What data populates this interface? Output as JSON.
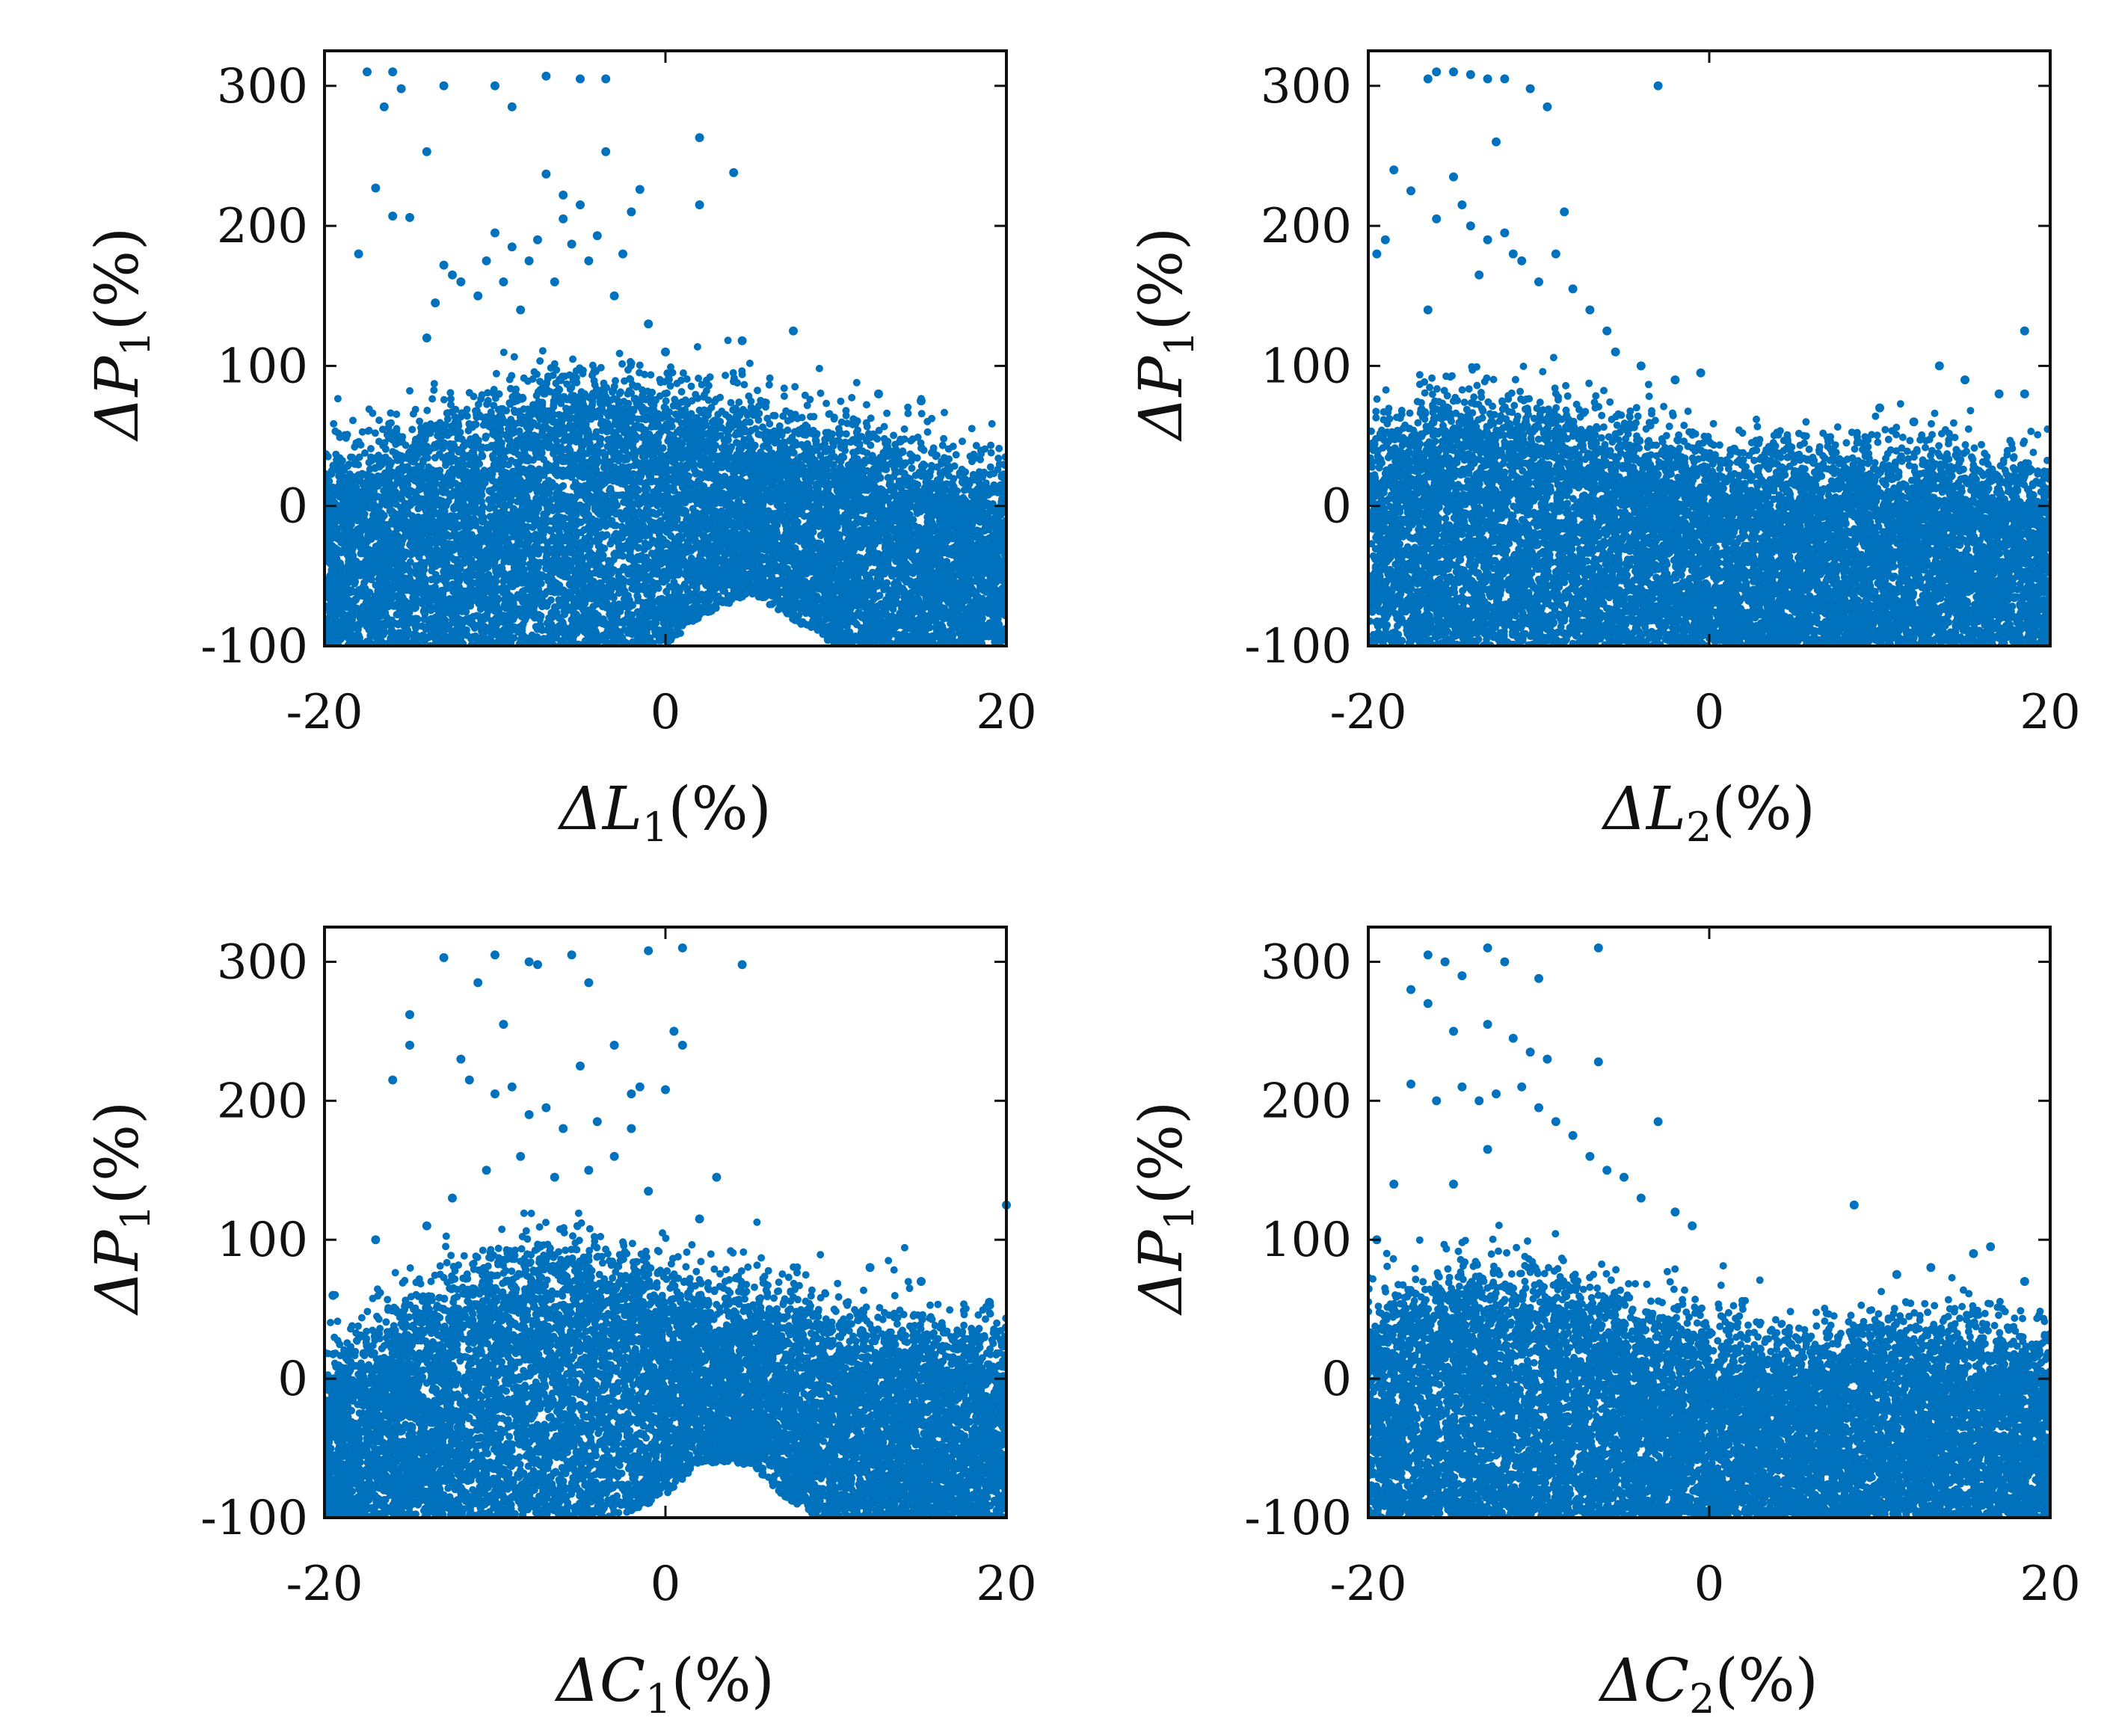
{
  "colors": {
    "points": "#0072BD",
    "axes": "#111111",
    "background": "#ffffff"
  },
  "chart_data": [
    {
      "type": "scatter",
      "id": "L1",
      "xlabel": {
        "symbol": "ΔL",
        "sub": "1",
        "unit": "(%)"
      },
      "ylabel": {
        "symbol": "ΔP",
        "sub": "1",
        "unit": "(%)"
      },
      "xlim": [
        -20,
        20
      ],
      "ylim": [
        -100,
        325
      ],
      "xticks": [
        -20,
        0,
        20
      ],
      "yticks": [
        -100,
        0,
        100,
        200,
        300
      ],
      "xtick_labels": [
        "-20",
        "0",
        "20"
      ],
      "ytick_labels": [
        "-100",
        "0",
        "100",
        "200",
        "300"
      ],
      "grid": false,
      "bulk_trend": [
        [
          -20,
          5
        ],
        [
          -10,
          45
        ],
        [
          -5,
          60
        ],
        [
          0,
          50
        ],
        [
          10,
          25
        ],
        [
          20,
          -5
        ]
      ],
      "bulk_floor": [
        [
          -20,
          -100
        ],
        [
          0,
          -100
        ],
        [
          2,
          -80
        ],
        [
          5,
          -62
        ],
        [
          8,
          -85
        ],
        [
          10,
          -100
        ],
        [
          20,
          -100
        ]
      ],
      "outliers": [
        [
          -18,
          180
        ],
        [
          -17.5,
          310
        ],
        [
          -16.5,
          285
        ],
        [
          -16,
          310
        ],
        [
          -15.5,
          298
        ],
        [
          -13,
          300
        ],
        [
          -10,
          300
        ],
        [
          -9,
          285
        ],
        [
          -7,
          307
        ],
        [
          -5,
          305
        ],
        [
          -3.5,
          305
        ],
        [
          -17,
          227
        ],
        [
          -16,
          207
        ],
        [
          -14,
          253
        ],
        [
          -15,
          206
        ],
        [
          -12,
          160
        ],
        [
          -10,
          195
        ],
        [
          -9,
          185
        ],
        [
          -7,
          237
        ],
        [
          -6,
          222
        ],
        [
          -5,
          215
        ],
        [
          -5.5,
          187
        ],
        [
          -4,
          193
        ],
        [
          -3.5,
          253
        ],
        [
          -1.5,
          226
        ],
        [
          -2,
          210
        ],
        [
          2,
          263
        ],
        [
          2,
          215
        ],
        [
          4,
          238
        ],
        [
          -8,
          175
        ],
        [
          -11,
          150
        ],
        [
          -13,
          172
        ],
        [
          -12.5,
          165
        ],
        [
          -6,
          205
        ],
        [
          -4.5,
          175
        ],
        [
          -9.5,
          160
        ],
        [
          -2.5,
          180
        ],
        [
          -1,
          130
        ],
        [
          0,
          110
        ],
        [
          4.5,
          118
        ],
        [
          7.5,
          125
        ],
        [
          12.5,
          80
        ],
        [
          15,
          75
        ],
        [
          -14,
          120
        ],
        [
          -8.5,
          140
        ],
        [
          -6.5,
          160
        ],
        [
          -3,
          150
        ],
        [
          -7.5,
          190
        ],
        [
          -10.5,
          175
        ],
        [
          -13.5,
          145
        ]
      ]
    },
    {
      "type": "scatter",
      "id": "L2",
      "xlabel": {
        "symbol": "ΔL",
        "sub": "2",
        "unit": "(%)"
      },
      "ylabel": {
        "symbol": "ΔP",
        "sub": "1",
        "unit": "(%)"
      },
      "xlim": [
        -20,
        20
      ],
      "ylim": [
        -100,
        325
      ],
      "xticks": [
        -20,
        0,
        20
      ],
      "yticks": [
        -100,
        0,
        100,
        200,
        300
      ],
      "xtick_labels": [
        "-20",
        "0",
        "20"
      ],
      "ytick_labels": [
        "-100",
        "0",
        "100",
        "200",
        "300"
      ],
      "grid": false,
      "bulk_trend": [
        [
          -20,
          25
        ],
        [
          -15,
          45
        ],
        [
          -10,
          40
        ],
        [
          -5,
          25
        ],
        [
          0,
          10
        ],
        [
          5,
          5
        ],
        [
          10,
          10
        ],
        [
          15,
          5
        ],
        [
          20,
          0
        ]
      ],
      "bulk_floor": [
        [
          -20,
          -100
        ],
        [
          20,
          -100
        ]
      ],
      "outliers": [
        [
          -16.5,
          305
        ],
        [
          -16,
          310
        ],
        [
          -15,
          310
        ],
        [
          -14,
          308
        ],
        [
          -13,
          305
        ],
        [
          -12,
          305
        ],
        [
          -10.5,
          298
        ],
        [
          -9.5,
          285
        ],
        [
          -3,
          300
        ],
        [
          -19.5,
          180
        ],
        [
          -19,
          190
        ],
        [
          -18.5,
          240
        ],
        [
          -17.5,
          225
        ],
        [
          -16,
          205
        ],
        [
          -15,
          235
        ],
        [
          -14.5,
          215
        ],
        [
          -14,
          200
        ],
        [
          -13,
          190
        ],
        [
          -12,
          195
        ],
        [
          -11,
          175
        ],
        [
          -10,
          160
        ],
        [
          -12.5,
          260
        ],
        [
          -8.5,
          210
        ],
        [
          -8,
          155
        ],
        [
          -7,
          140
        ],
        [
          -6,
          125
        ],
        [
          -5.5,
          110
        ],
        [
          -4,
          100
        ],
        [
          -2,
          90
        ],
        [
          -0.5,
          95
        ],
        [
          -16.5,
          140
        ],
        [
          -13.5,
          165
        ],
        [
          -11.5,
          180
        ],
        [
          -9,
          180
        ],
        [
          13.5,
          100
        ],
        [
          15,
          90
        ],
        [
          17,
          80
        ],
        [
          18.5,
          80
        ],
        [
          18.5,
          125
        ],
        [
          10,
          70
        ],
        [
          12,
          60
        ]
      ]
    },
    {
      "type": "scatter",
      "id": "C1",
      "xlabel": {
        "symbol": "ΔC",
        "sub": "1",
        "unit": "(%)"
      },
      "ylabel": {
        "symbol": "ΔP",
        "sub": "1",
        "unit": "(%)"
      },
      "xlim": [
        -20,
        20
      ],
      "ylim": [
        -100,
        325
      ],
      "xticks": [
        -20,
        0,
        20
      ],
      "yticks": [
        -100,
        0,
        100,
        200,
        300
      ],
      "xtick_labels": [
        "-20",
        "0",
        "20"
      ],
      "ytick_labels": [
        "-100",
        "0",
        "100",
        "200",
        "300"
      ],
      "grid": false,
      "bulk_trend": [
        [
          -20,
          -15
        ],
        [
          -15,
          20
        ],
        [
          -10,
          55
        ],
        [
          -5,
          60
        ],
        [
          0,
          45
        ],
        [
          10,
          20
        ],
        [
          20,
          0
        ]
      ],
      "bulk_floor": [
        [
          -20,
          -100
        ],
        [
          -3,
          -100
        ],
        [
          0,
          -85
        ],
        [
          2,
          -60
        ],
        [
          5,
          -62
        ],
        [
          7,
          -85
        ],
        [
          9,
          -100
        ],
        [
          20,
          -100
        ]
      ],
      "outliers": [
        [
          -13,
          303
        ],
        [
          -11,
          285
        ],
        [
          -10,
          305
        ],
        [
          -8,
          300
        ],
        [
          -7.5,
          298
        ],
        [
          -5.5,
          305
        ],
        [
          -4.5,
          285
        ],
        [
          -1,
          308
        ],
        [
          1,
          310
        ],
        [
          4.5,
          298
        ],
        [
          -15,
          240
        ],
        [
          -15,
          262
        ],
        [
          -16,
          215
        ],
        [
          -12,
          230
        ],
        [
          -11.5,
          215
        ],
        [
          -10,
          205
        ],
        [
          -9.5,
          255
        ],
        [
          -9,
          210
        ],
        [
          -8,
          190
        ],
        [
          -7,
          195
        ],
        [
          -6,
          180
        ],
        [
          -5,
          225
        ],
        [
          -4,
          185
        ],
        [
          -3,
          240
        ],
        [
          -2,
          205
        ],
        [
          -1.5,
          210
        ],
        [
          0,
          208
        ],
        [
          0.5,
          250
        ],
        [
          1,
          240
        ],
        [
          -2,
          180
        ],
        [
          -3,
          160
        ],
        [
          -4.5,
          150
        ],
        [
          -6.5,
          145
        ],
        [
          -8.5,
          160
        ],
        [
          -10.5,
          150
        ],
        [
          -12.5,
          130
        ],
        [
          3,
          145
        ],
        [
          -17,
          100
        ],
        [
          -19.5,
          60
        ],
        [
          20,
          125
        ],
        [
          19,
          55
        ],
        [
          12,
          80
        ],
        [
          15,
          70
        ],
        [
          -14,
          110
        ],
        [
          -1,
          135
        ],
        [
          2,
          115
        ]
      ]
    },
    {
      "type": "scatter",
      "id": "C2",
      "xlabel": {
        "symbol": "ΔC",
        "sub": "2",
        "unit": "(%)"
      },
      "ylabel": {
        "symbol": "ΔP",
        "sub": "1",
        "unit": "(%)"
      },
      "xlim": [
        -20,
        20
      ],
      "ylim": [
        -100,
        325
      ],
      "xticks": [
        -20,
        0,
        20
      ],
      "yticks": [
        -100,
        0,
        100,
        200,
        300
      ],
      "xtick_labels": [
        "-20",
        "0",
        "20"
      ],
      "ytick_labels": [
        "-100",
        "0",
        "100",
        "200",
        "300"
      ],
      "grid": false,
      "bulk_trend": [
        [
          -20,
          20
        ],
        [
          -15,
          45
        ],
        [
          -10,
          45
        ],
        [
          -5,
          25
        ],
        [
          0,
          5
        ],
        [
          5,
          0
        ],
        [
          10,
          10
        ],
        [
          15,
          10
        ],
        [
          20,
          0
        ]
      ],
      "bulk_floor": [
        [
          -20,
          -100
        ],
        [
          20,
          -100
        ]
      ],
      "outliers": [
        [
          -16.5,
          305
        ],
        [
          -15.5,
          300
        ],
        [
          -14.5,
          290
        ],
        [
          -13,
          310
        ],
        [
          -12,
          300
        ],
        [
          -10,
          288
        ],
        [
          -6.5,
          310
        ],
        [
          -17.5,
          280
        ],
        [
          -16.5,
          270
        ],
        [
          -15,
          250
        ],
        [
          -13,
          255
        ],
        [
          -11.5,
          245
        ],
        [
          -10.5,
          235
        ],
        [
          -9.5,
          230
        ],
        [
          -6.5,
          228
        ],
        [
          -17.5,
          212
        ],
        [
          -16,
          200
        ],
        [
          -14.5,
          210
        ],
        [
          -13.5,
          200
        ],
        [
          -12.5,
          205
        ],
        [
          -11,
          210
        ],
        [
          -10,
          195
        ],
        [
          -9,
          185
        ],
        [
          -8,
          175
        ],
        [
          -7,
          160
        ],
        [
          -6,
          150
        ],
        [
          -5,
          145
        ],
        [
          -4,
          130
        ],
        [
          -3,
          185
        ],
        [
          -2,
          120
        ],
        [
          -1,
          110
        ],
        [
          -13,
          165
        ],
        [
          -15,
          140
        ],
        [
          -18.5,
          140
        ],
        [
          -19.5,
          100
        ],
        [
          8.5,
          125
        ],
        [
          15.5,
          90
        ],
        [
          16.5,
          95
        ],
        [
          13,
          80
        ],
        [
          11,
          75
        ],
        [
          18.5,
          70
        ]
      ]
    }
  ]
}
